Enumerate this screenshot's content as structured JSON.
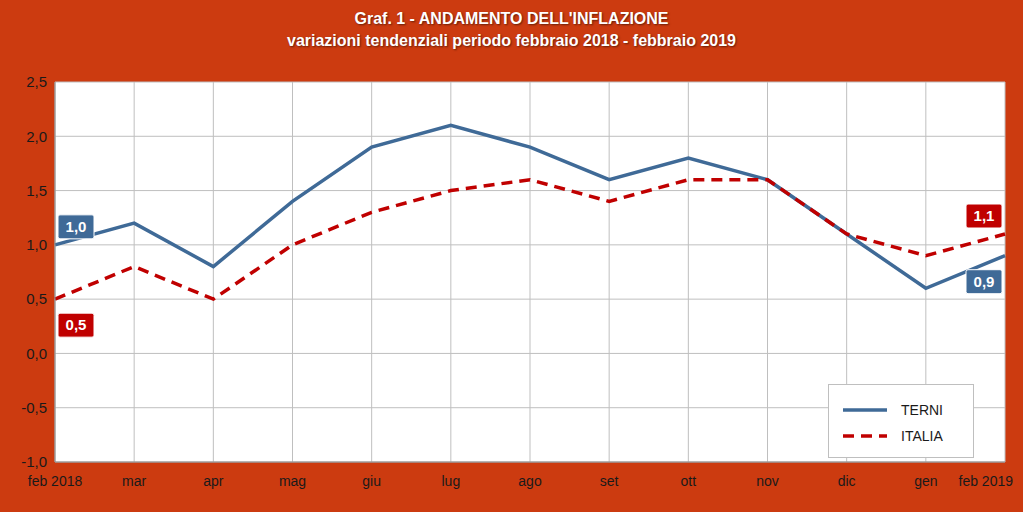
{
  "chart_data": {
    "type": "line",
    "title": "Graf. 1 - ANDAMENTO DELL'INFLAZIONE",
    "subtitle": "variazioni tendenziali periodo febbraio 2018 - febbraio 2019",
    "categories": [
      "feb 2018",
      "mar",
      "apr",
      "mag",
      "giu",
      "lug",
      "ago",
      "set",
      "ott",
      "nov",
      "dic",
      "gen",
      "feb 2019"
    ],
    "series": [
      {
        "name": "TERNI",
        "color": "#3f6a97",
        "line_style": "solid",
        "values": [
          1.0,
          1.2,
          0.8,
          1.4,
          1.9,
          2.1,
          1.9,
          1.6,
          1.8,
          1.6,
          1.1,
          0.6,
          0.9
        ],
        "value_labels": [
          "1,0",
          null,
          null,
          null,
          null,
          null,
          null,
          null,
          null,
          null,
          null,
          null,
          "0,9"
        ]
      },
      {
        "name": "ITALIA",
        "color": "#c00000",
        "line_style": "dashed",
        "values": [
          0.5,
          0.8,
          0.5,
          1.0,
          1.3,
          1.5,
          1.6,
          1.4,
          1.6,
          1.6,
          1.1,
          0.9,
          1.1
        ],
        "value_labels": [
          "0,5",
          null,
          null,
          null,
          null,
          null,
          null,
          null,
          null,
          null,
          null,
          null,
          "1,1"
        ]
      }
    ],
    "ylim": [
      -1.0,
      2.5
    ],
    "yticks": [
      {
        "value": -1.0,
        "label": "-1,0"
      },
      {
        "value": -0.5,
        "label": "-0,5"
      },
      {
        "value": 0.0,
        "label": "0,0"
      },
      {
        "value": 0.5,
        "label": "0,5"
      },
      {
        "value": 1.0,
        "label": "1,0"
      },
      {
        "value": 1.5,
        "label": "1,5"
      },
      {
        "value": 2.0,
        "label": "2,0"
      },
      {
        "value": 2.5,
        "label": "2,5"
      }
    ],
    "grid": true,
    "legend": "lower right"
  }
}
